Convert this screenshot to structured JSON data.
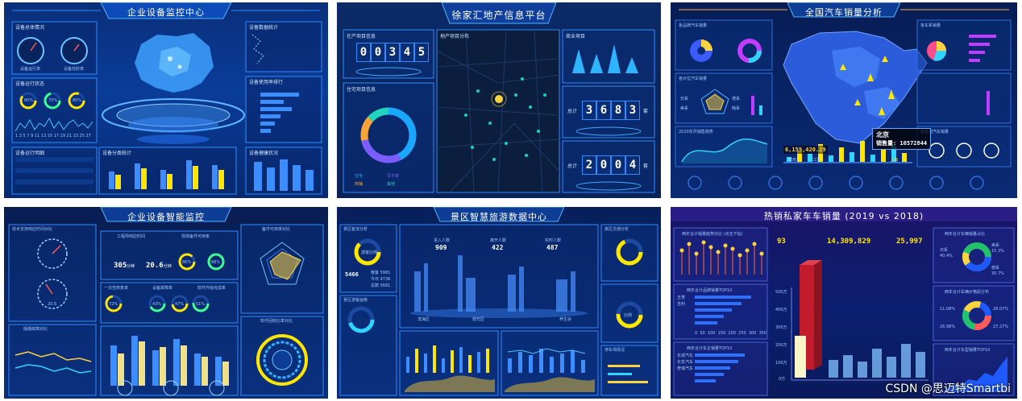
{
  "tile1": {
    "title": "企业设备监控中心",
    "gauge_labels": [
      "设备运行率",
      "设备完好率"
    ],
    "panel_titles": [
      "设备总体情况",
      "设备运行状态",
      "设备数据统计",
      "设备使用率排行",
      "设备运行明细",
      "设备分类统计",
      "设备健康状况"
    ],
    "ring_values": [
      "60%",
      "70%",
      "80%"
    ],
    "bar_values": [
      0.68,
      0.42,
      0.55,
      0.35,
      0.25,
      0.18
    ],
    "col_values": [
      0.55,
      0.8,
      0.6,
      0.9,
      0.75
    ],
    "col_labels": [
      "类别一",
      "类别二",
      "类别三",
      "类别四",
      "类别五"
    ],
    "axis_numbers": "1 3 5 7 9 11 13 15 17 19 21 23 25 27"
  },
  "tile2": {
    "title": "徐家汇地产信息平台",
    "left_panel_title": "在产项目信息",
    "counter1": [
      "0",
      "0",
      "3",
      "4",
      "5"
    ],
    "donut_panel_title": "住宅项目信息",
    "map_title": "地产项目分布",
    "right_panel_title": "商业项目",
    "counter2_label": "总计",
    "counter2": [
      "3",
      "6",
      "8",
      "3"
    ],
    "counter3_label": "总计",
    "counter3": [
      "2",
      "0",
      "0",
      "4"
    ],
    "counter_suffix": "套",
    "legend": [
      "住宅",
      "写字楼",
      "商铺",
      "其他"
    ]
  },
  "tile3": {
    "title": "全国汽车销量分析",
    "tooltip_city": "北京",
    "tooltip_value": "销售量: 10572844",
    "left_value": "6,159,420.29",
    "region_labels": [
      "华南",
      "江苏",
      "上海"
    ],
    "radar_labels": [
      "日系",
      "美系",
      "德系",
      "韩系"
    ],
    "panel_titles": [
      "各品牌汽车销量",
      "各价位汽车销量",
      "2020年月销售趋势",
      "各车系销量",
      "各级别汽车销量"
    ]
  },
  "tile4": {
    "title": "企业设备智能监控",
    "panel_titles": [
      "技术支持响应时间对比",
      "工程师响应时间",
      "现场备件可用率",
      "一次性修复率",
      "设备故障率",
      "软件升级完成率",
      "备件可用率对比",
      "版期故障对比",
      "软件回收比率对比"
    ],
    "stat1": "305",
    "stat2": "20.6",
    "stat_unit": "分钟",
    "ring_values": [
      "72%",
      "43%",
      "47%",
      "51%",
      "86%",
      "98%"
    ],
    "gauge_value": "20.6",
    "x_labels": [
      "1月",
      "2月",
      "3月",
      "4月",
      "5月",
      "6月"
    ]
  },
  "tile5": {
    "title": "景区智慧旅游数据中心",
    "kpi_labels": [
      "进入人数",
      "离开人数",
      "实时人数"
    ],
    "kpi_values": [
      "909",
      "422",
      "487"
    ],
    "left_big": "5466",
    "left_rows": [
      "散客 5981",
      "今日 4736",
      "总数 5681"
    ],
    "panel_titles": [
      "景区客流分析",
      "景区游客画像",
      "景区交通分析",
      "停车场情况"
    ],
    "city_labels": [
      "滨海区",
      "观光区",
      "养生谷"
    ],
    "ring_text": [
      "游客比例",
      "比例"
    ]
  },
  "tile6": {
    "title": "热销私家车车销量",
    "title_years": "(2019 vs 2018)",
    "kpi_values": [
      "93",
      "14,309,829",
      "25,997"
    ],
    "panel_titles": [
      "两年合计销量趋势对比 (点击下钻)",
      "两年合计品牌销量TOP10",
      "两年合计车企销量TOP10",
      "两年合计车辆销量占比",
      "两年合计车辆价格段分布",
      "两年合计车型销量TOP10"
    ],
    "brand_labels": [
      "五菱",
      "吉利",
      "长城汽车",
      "长安汽车",
      "奇瑞汽车"
    ],
    "y_ticks": [
      "500万",
      "400万",
      "300万",
      "200万",
      "100万",
      "0万"
    ],
    "axis_ticks": [
      "0",
      "50",
      "100",
      "150",
      "200",
      "250",
      "300",
      "350"
    ],
    "right_legend": [
      "日系",
      "美系",
      "德系",
      "国产",
      "其他"
    ],
    "pct_labels": [
      "40.4%",
      "15.3%",
      "30.7%",
      "11.08%",
      "28.07%",
      "26.98%",
      "27.27%"
    ]
  },
  "watermark": "CSDN @思迈特Smartbi"
}
